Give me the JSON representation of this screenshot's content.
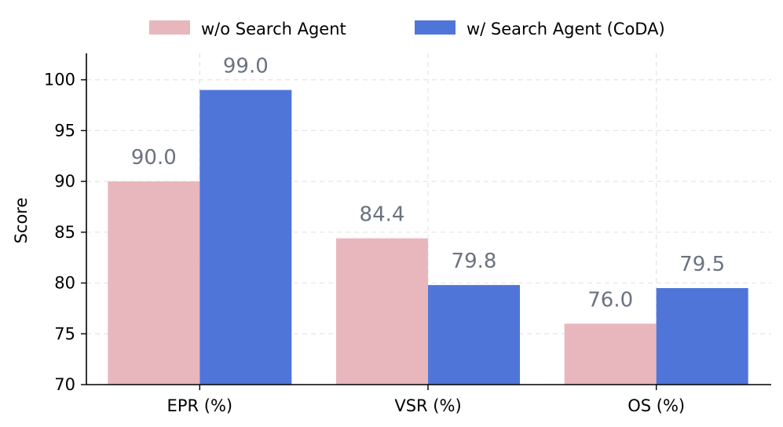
{
  "chart_data": {
    "type": "bar",
    "categories": [
      "EPR (%)",
      "VSR (%)",
      "OS (%)"
    ],
    "series": [
      {
        "name": "w/o Search Agent",
        "values": [
          90.0,
          84.4,
          76.0
        ],
        "color": "#e8b7be"
      },
      {
        "name": "w/ Search Agent (CoDA)",
        "values": [
          99.0,
          79.8,
          79.5
        ],
        "color": "#4f75d9"
      }
    ],
    "data_labels": [
      [
        "90.0",
        "84.4",
        "76.0"
      ],
      [
        "99.0",
        "79.8",
        "79.5"
      ]
    ],
    "ylabel": "Score",
    "ylim": [
      70,
      102.6
    ],
    "yticks": [
      70,
      75,
      80,
      85,
      90,
      95,
      100
    ],
    "ytick_labels": [
      "70",
      "75",
      "80",
      "85",
      "90",
      "95",
      "100"
    ],
    "grid": true,
    "legend_position": "top-center"
  }
}
